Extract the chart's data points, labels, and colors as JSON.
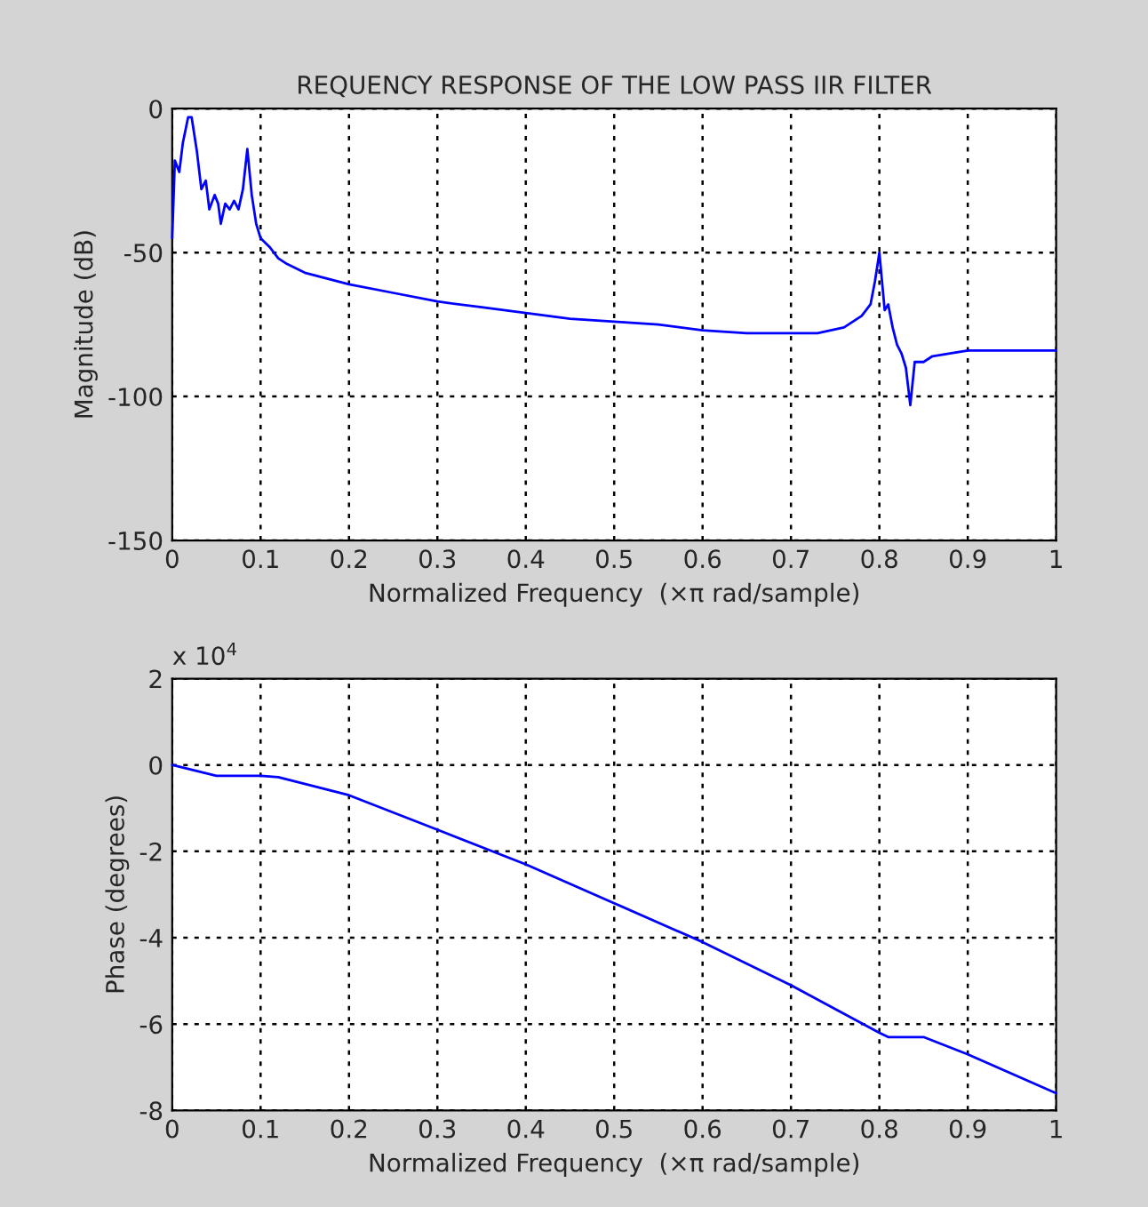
{
  "chart_data": [
    {
      "type": "line",
      "title": "REQUENCY RESPONSE OF THE LOW PASS IIR FILTER",
      "xlabel": "Normalized Frequency  (×π rad/sample)",
      "ylabel": "Magnitude (dB)",
      "x": [
        0,
        0.003,
        0.008,
        0.012,
        0.018,
        0.022,
        0.028,
        0.033,
        0.038,
        0.042,
        0.048,
        0.052,
        0.055,
        0.06,
        0.065,
        0.07,
        0.075,
        0.08,
        0.085,
        0.09,
        0.095,
        0.1,
        0.11,
        0.12,
        0.13,
        0.15,
        0.2,
        0.25,
        0.3,
        0.35,
        0.4,
        0.45,
        0.5,
        0.55,
        0.6,
        0.65,
        0.7,
        0.73,
        0.76,
        0.78,
        0.79,
        0.795,
        0.8,
        0.803,
        0.806,
        0.81,
        0.815,
        0.82,
        0.825,
        0.83,
        0.835,
        0.84,
        0.85,
        0.86,
        0.88,
        0.9,
        0.95,
        1.0
      ],
      "series": [
        {
          "color": "#0000ff",
          "values": [
            -45,
            -18,
            -22,
            -12,
            -3,
            -3,
            -15,
            -28,
            -25,
            -35,
            -30,
            -33,
            -40,
            -33,
            -35,
            -32,
            -35,
            -28,
            -14,
            -30,
            -40,
            -45,
            -48,
            -52,
            -54,
            -57,
            -61,
            -64,
            -67,
            -69,
            -71,
            -73,
            -74,
            -75,
            -77,
            -78,
            -78,
            -78,
            -76,
            -72,
            -68,
            -60,
            -50,
            -60,
            -70,
            -68,
            -76,
            -82,
            -85,
            -90,
            -103,
            -88,
            -88,
            -86,
            -85,
            -84,
            -84,
            -84
          ]
        }
      ],
      "xlim": [
        0,
        1
      ],
      "xticks": [
        0,
        0.1,
        0.2,
        0.3,
        0.4,
        0.5,
        0.6,
        0.7,
        0.8,
        0.9,
        1
      ],
      "ylim": [
        -150,
        0
      ],
      "yticks": [
        -150,
        -100,
        -50,
        0
      ],
      "grid": true
    },
    {
      "type": "line",
      "xlabel": "Normalized Frequency  (×π rad/sample)",
      "ylabel": "Phase (degrees)",
      "annotations": [
        "x 10$^{4}$"
      ],
      "x": [
        0,
        0.05,
        0.1,
        0.12,
        0.2,
        0.3,
        0.4,
        0.5,
        0.6,
        0.7,
        0.8,
        0.81,
        0.85,
        0.9,
        1.0
      ],
      "series": [
        {
          "color": "#0000ff",
          "values": [
            0,
            -0.25,
            -0.25,
            -0.28,
            -0.7,
            -1.5,
            -2.3,
            -3.2,
            -4.1,
            -5.1,
            -6.2,
            -6.3,
            -6.3,
            -6.7,
            -7.6
          ]
        }
      ],
      "xlim": [
        0,
        1
      ],
      "xticks": [
        0,
        0.1,
        0.2,
        0.3,
        0.4,
        0.5,
        0.6,
        0.7,
        0.8,
        0.9,
        1
      ],
      "ylim": [
        -8,
        2
      ],
      "yticks": [
        -8,
        -6,
        -4,
        -2,
        0,
        2
      ],
      "grid": true
    }
  ]
}
